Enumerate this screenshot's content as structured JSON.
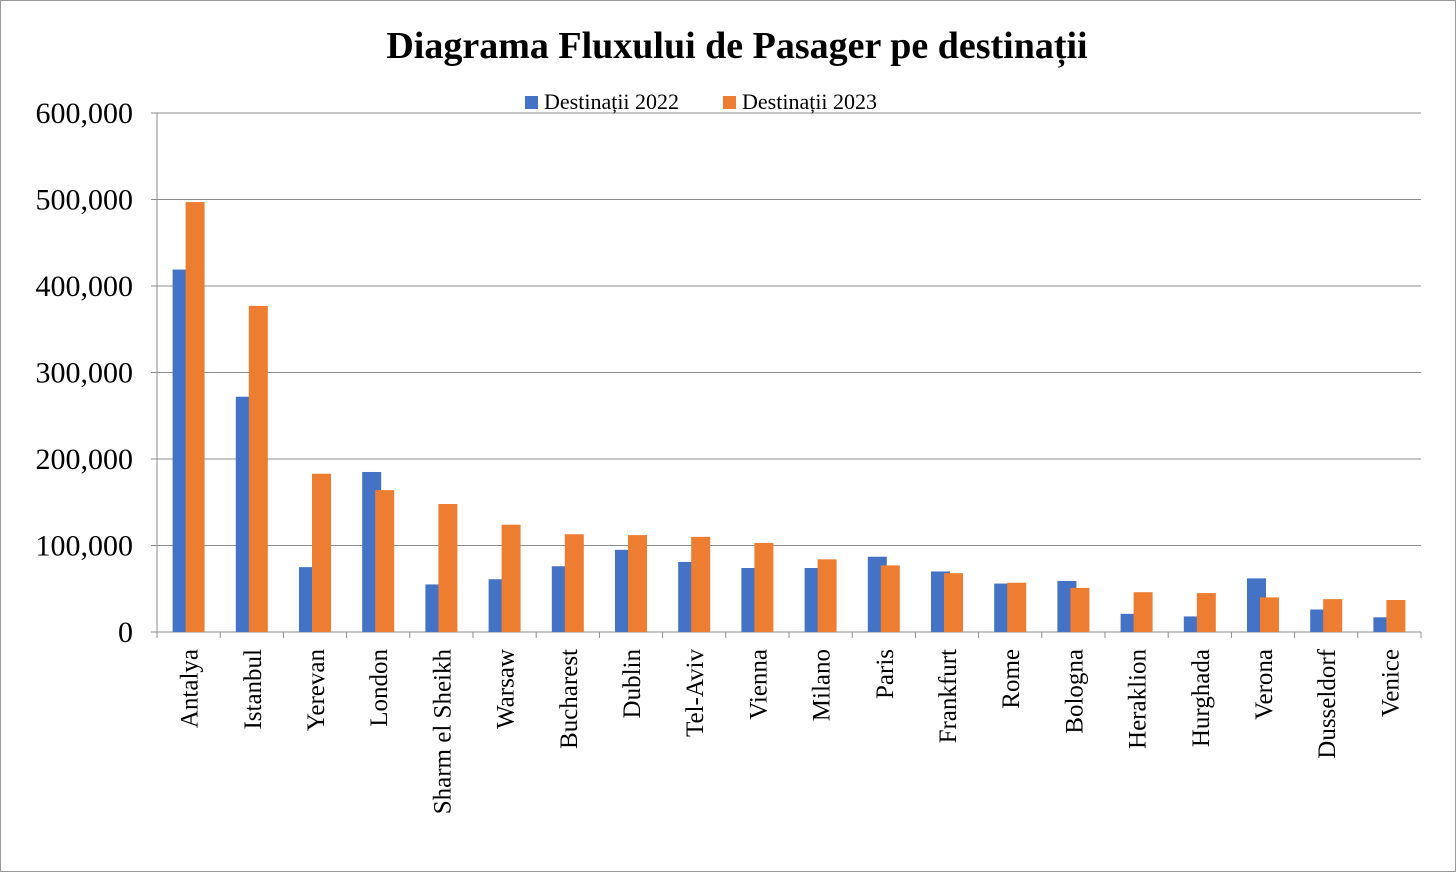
{
  "chart_data": {
    "type": "bar",
    "title": "Diagrama Fluxului de Pasager pe destinații",
    "xlabel": "",
    "ylabel": "",
    "ylim": [
      0,
      600000
    ],
    "yticks": [
      0,
      100000,
      200000,
      300000,
      400000,
      500000,
      600000
    ],
    "ytick_labels": [
      "0",
      "100,000",
      "200,000",
      "300,000",
      "400,000",
      "500,000",
      "600,000"
    ],
    "grid": true,
    "legend_position": "top",
    "categories": [
      "Antalya",
      "Istanbul",
      "Yerevan",
      "London",
      "Sharm el Sheikh",
      "Warsaw",
      "Bucharest",
      "Dublin",
      "Tel-Aviv",
      "Vienna",
      "Milano",
      "Paris",
      "Frankfurt",
      "Rome",
      "Bologna",
      "Heraklion",
      "Hurghada",
      "Verona",
      "Dusseldorf",
      "Venice"
    ],
    "series": [
      {
        "name": "Destinații 2022",
        "color": "#4472C4",
        "values": [
          419000,
          272000,
          75000,
          185000,
          55000,
          61000,
          76000,
          95000,
          81000,
          74000,
          74000,
          87000,
          70000,
          56000,
          59000,
          21000,
          18000,
          62000,
          26000,
          17000
        ]
      },
      {
        "name": "Destinații 2023",
        "color": "#ED7D31",
        "values": [
          497000,
          377000,
          183000,
          164000,
          148000,
          124000,
          113000,
          112000,
          110000,
          103000,
          84000,
          77000,
          68000,
          57000,
          51000,
          46000,
          45000,
          40000,
          38000,
          37000
        ]
      }
    ]
  }
}
